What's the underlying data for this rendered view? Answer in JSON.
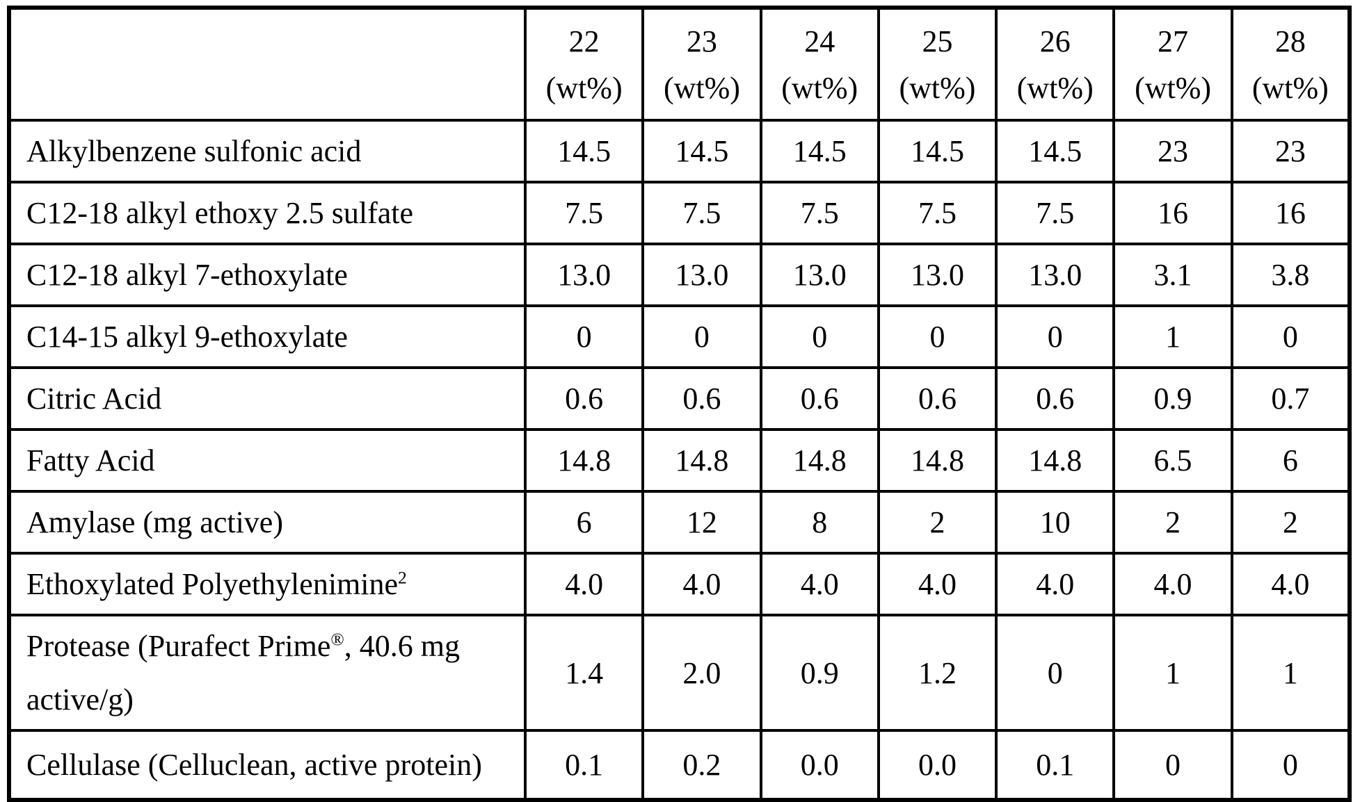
{
  "page": {
    "background_color": "#ffffff",
    "grid_color": "#000000",
    "text_color": "#000000"
  },
  "table": {
    "corner_label": "",
    "columns": [
      {
        "number": "22",
        "unit": "(wt%)"
      },
      {
        "number": "23",
        "unit": "(wt%)"
      },
      {
        "number": "24",
        "unit": "(wt%)"
      },
      {
        "number": "25",
        "unit": "(wt%)"
      },
      {
        "number": "26",
        "unit": "(wt%)"
      },
      {
        "number": "27",
        "unit": "(wt%)"
      },
      {
        "number": "28",
        "unit": "(wt%)"
      }
    ],
    "rows": [
      {
        "label_pre": "Alkylbenzene sulfonic acid",
        "sup": "",
        "label_post": "",
        "values": [
          "14.5",
          "14.5",
          "14.5",
          "14.5",
          "14.5",
          "23",
          "23"
        ]
      },
      {
        "label_pre": "C12-18 alkyl ethoxy 2.5 sulfate",
        "sup": "",
        "label_post": "",
        "values": [
          "7.5",
          "7.5",
          "7.5",
          "7.5",
          "7.5",
          "16",
          "16"
        ]
      },
      {
        "label_pre": "C12-18 alkyl 7-ethoxylate",
        "sup": "",
        "label_post": "",
        "values": [
          "13.0",
          "13.0",
          "13.0",
          "13.0",
          "13.0",
          "3.1",
          "3.8"
        ]
      },
      {
        "label_pre": "C14-15 alkyl 9-ethoxylate",
        "sup": "",
        "label_post": "",
        "values": [
          "0",
          "0",
          "0",
          "0",
          "0",
          "1",
          "0"
        ]
      },
      {
        "label_pre": "Citric Acid",
        "sup": "",
        "label_post": "",
        "values": [
          "0.6",
          "0.6",
          "0.6",
          "0.6",
          "0.6",
          "0.9",
          "0.7"
        ]
      },
      {
        "label_pre": "Fatty Acid",
        "sup": "",
        "label_post": "",
        "values": [
          "14.8",
          "14.8",
          "14.8",
          "14.8",
          "14.8",
          "6.5",
          "6"
        ]
      },
      {
        "label_pre": "Amylase (mg active)",
        "sup": "",
        "label_post": "",
        "values": [
          "6",
          "12",
          "8",
          "2",
          "10",
          "2",
          "2"
        ]
      },
      {
        "label_pre": "Ethoxylated Polyethylenimine",
        "sup": "2",
        "label_post": "",
        "values": [
          "4.0",
          "4.0",
          "4.0",
          "4.0",
          "4.0",
          "4.0",
          "4.0"
        ]
      },
      {
        "label_pre": "Protease (Purafect Prime",
        "sup": "®",
        "label_post": ", 40.6 mg active/g)",
        "values": [
          "1.4",
          "2.0",
          "0.9",
          "1.2",
          "0",
          "1",
          "1"
        ]
      },
      {
        "label_pre": "Cellulase (Celluclean, active protein)",
        "sup": "",
        "label_post": "",
        "values": [
          "0.1",
          "0.2",
          "0.0",
          "0.0",
          "0.1",
          "0",
          "0"
        ]
      }
    ]
  }
}
